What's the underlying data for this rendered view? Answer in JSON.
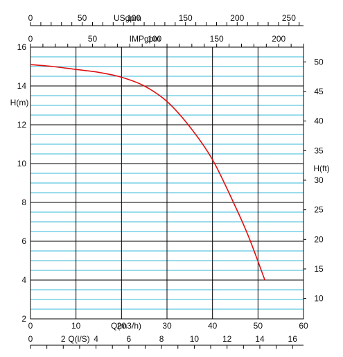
{
  "chart_data": {
    "type": "line",
    "colors": {
      "curve": "#e01010",
      "cyan_grid": "#33b8d8",
      "black_grid": "#000000"
    },
    "axes": {
      "left": {
        "label": "H(m)",
        "range": [
          2,
          16
        ],
        "ticks": [
          "2",
          "4",
          "6",
          "8",
          "10",
          "12",
          "14",
          "16"
        ]
      },
      "right": {
        "label": "H(ft)",
        "range": [
          6.56,
          52.49
        ],
        "ticks": [
          "10",
          "15",
          "20",
          "25",
          "30",
          "35",
          "40",
          "45",
          "50"
        ]
      },
      "bottom_q_m3h": {
        "label": "Q(m3/h)",
        "range": [
          0,
          60
        ],
        "ticks": [
          "0",
          "10",
          "20",
          "30",
          "40",
          "50",
          "60"
        ]
      },
      "bottom_q_ls": {
        "label": "Q(l/S)",
        "range": [
          0,
          16.67
        ],
        "ticks": [
          "0",
          "2",
          "4",
          "6",
          "8",
          "10",
          "12",
          "14",
          "16"
        ]
      },
      "top_usgpm": {
        "label": "USgpm",
        "range": [
          0,
          264.2
        ],
        "ticks": [
          "0",
          "50",
          "100",
          "150",
          "200",
          "250"
        ]
      },
      "top_impgpm": {
        "label": "IMPgpm",
        "range": [
          0,
          220
        ],
        "ticks": [
          "0",
          "50",
          "100",
          "150",
          "200"
        ]
      }
    },
    "series": [
      {
        "x": [
          0,
          5,
          10,
          15,
          20,
          25,
          30,
          35,
          40,
          45,
          48,
          51.5
        ],
        "y": [
          15.1,
          15.0,
          14.85,
          14.7,
          14.45,
          14.0,
          13.2,
          11.9,
          10.2,
          7.8,
          6.2,
          4.0
        ]
      }
    ]
  }
}
